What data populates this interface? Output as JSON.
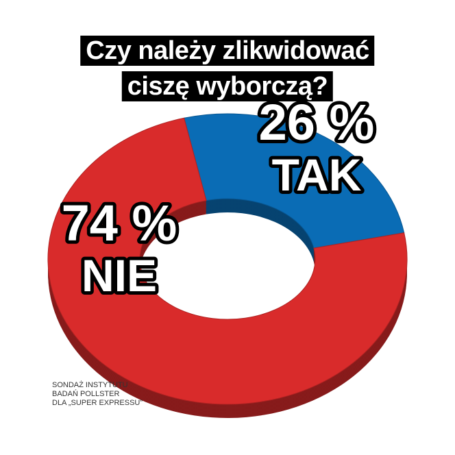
{
  "title": {
    "line1": "Czy należy zlikwidować",
    "line2": "ciszę wyborczą?"
  },
  "chart_data": {
    "type": "pie",
    "style": "donut-3d",
    "title": "Czy należy zlikwidować ciszę wyborczą?",
    "slices": [
      {
        "label": "TAK",
        "value": 26,
        "value_label": "26 %",
        "color": "#0a6cb5"
      },
      {
        "label": "NIE",
        "value": 74,
        "value_label": "74 %",
        "color": "#d92b2b"
      }
    ]
  },
  "source_note": {
    "line1": "SONDAŻ INSTYTUTU",
    "line2": "BADAŃ POLLSTER",
    "line3": "DLA „SUPER EXPRESSU”"
  }
}
